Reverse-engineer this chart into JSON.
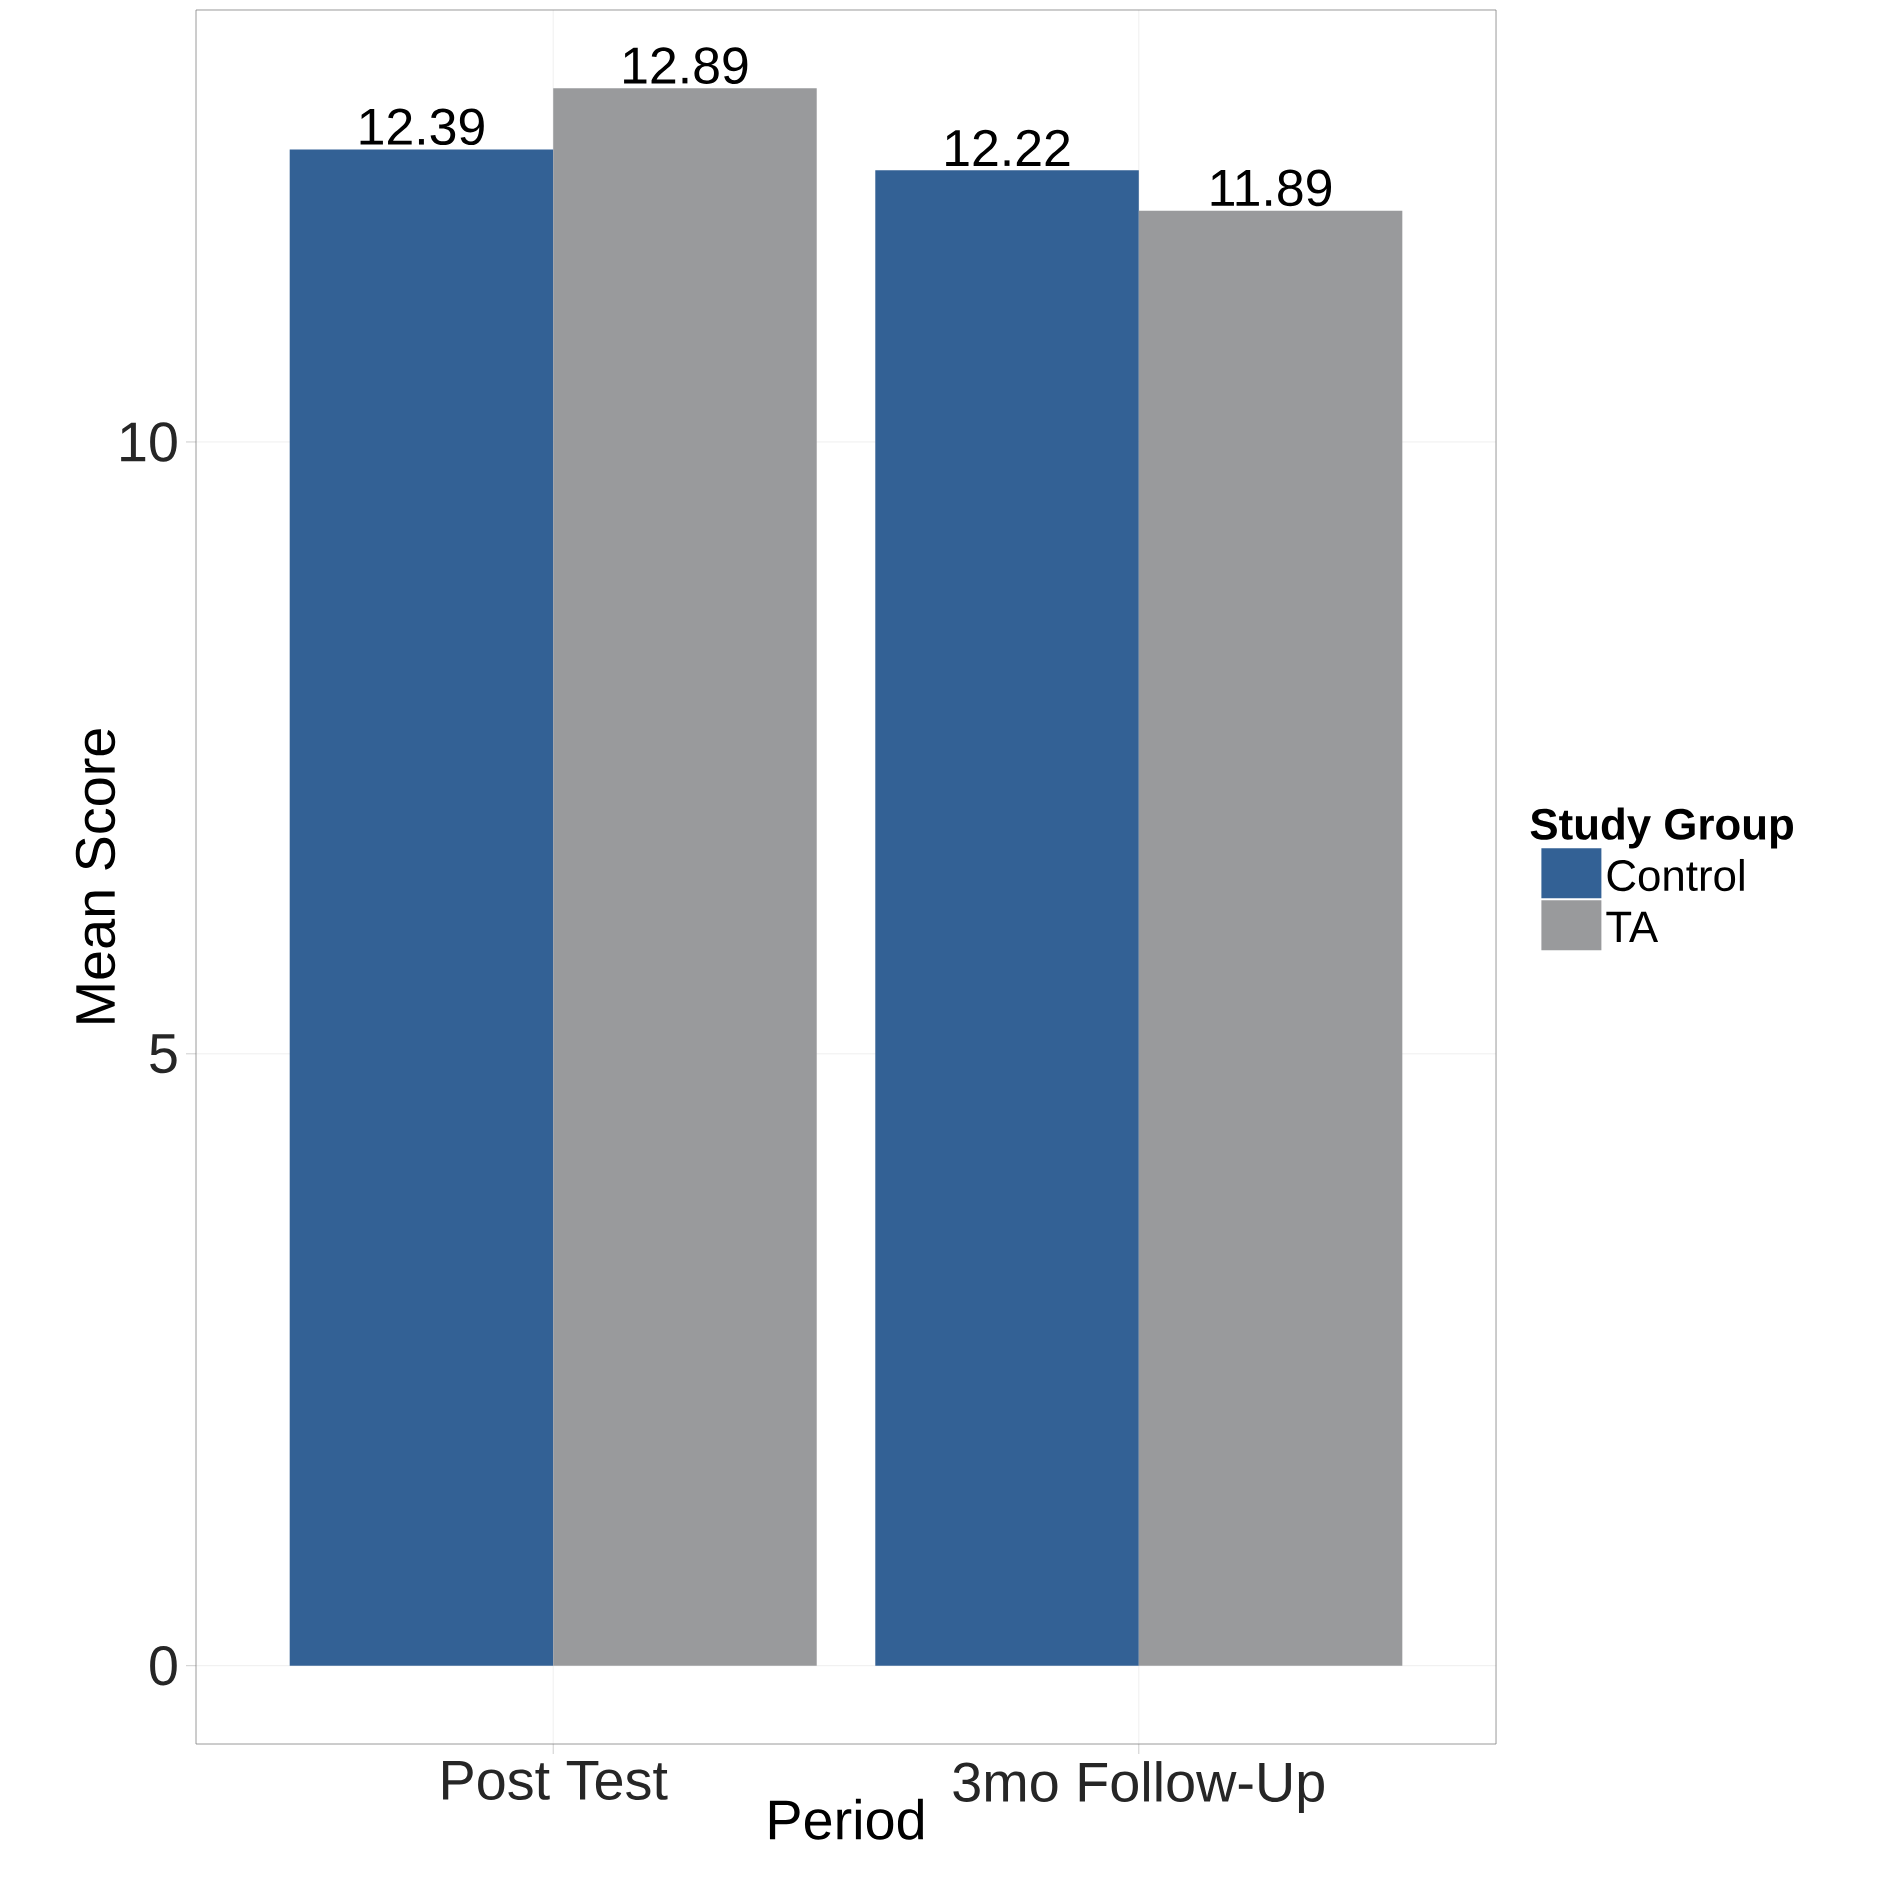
{
  "chart_data": {
    "type": "bar",
    "xlabel": "Period",
    "ylabel": "Mean Score",
    "legend_title": "Study Group",
    "categories": [
      "Post Test",
      "3mo Follow-Up"
    ],
    "series": [
      {
        "name": "Control",
        "color": "#336195",
        "values": [
          12.39,
          12.22
        ]
      },
      {
        "name": "TA",
        "color": "#999a9c",
        "values": [
          12.89,
          11.89
        ]
      }
    ],
    "ylim": [
      -0.64,
      13.53
    ],
    "yticks": [
      0,
      5,
      10
    ],
    "grid": true,
    "legend": "right",
    "data_labels": true
  }
}
